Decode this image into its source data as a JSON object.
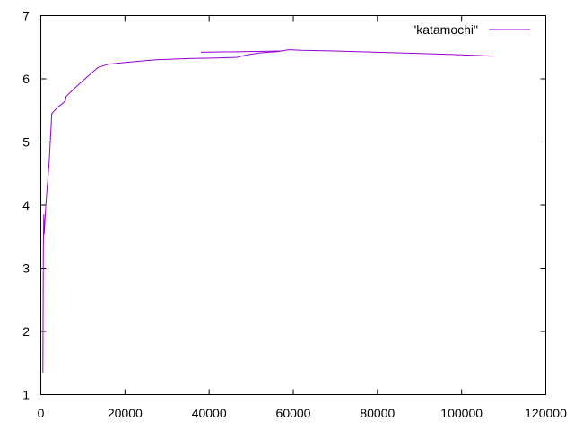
{
  "chart_data": {
    "type": "line",
    "xlim": [
      0,
      120000
    ],
    "ylim": [
      1,
      7
    ],
    "xticks": [
      0,
      20000,
      40000,
      60000,
      80000,
      100000,
      120000
    ],
    "xtick_labels": [
      "0",
      "20000",
      "40000",
      "60000",
      "80000",
      "100000",
      "120000"
    ],
    "yticks": [
      1,
      2,
      3,
      4,
      5,
      6,
      7
    ],
    "ytick_labels": [
      "1",
      "2",
      "3",
      "4",
      "5",
      "6",
      "7"
    ],
    "grid": false,
    "legend": "top-right",
    "series": [
      {
        "name": "\"katamochi\"",
        "color": "#9400d3",
        "points": [
          [
            500,
            1.35
          ],
          [
            600,
            3.3
          ],
          [
            700,
            3.85
          ],
          [
            800,
            3.55
          ],
          [
            1200,
            4.0
          ],
          [
            2000,
            4.7
          ],
          [
            2600,
            5.45
          ],
          [
            3000,
            5.48
          ],
          [
            4000,
            5.55
          ],
          [
            5000,
            5.6
          ],
          [
            5800,
            5.65
          ],
          [
            6000,
            5.72
          ],
          [
            8000,
            5.85
          ],
          [
            10000,
            5.97
          ],
          [
            13600,
            6.18
          ],
          [
            16000,
            6.23
          ],
          [
            20000,
            6.26
          ],
          [
            27000,
            6.3
          ],
          [
            35000,
            6.32
          ],
          [
            42000,
            6.33
          ],
          [
            46700,
            6.34
          ],
          [
            49000,
            6.38
          ],
          [
            52000,
            6.41
          ],
          [
            56000,
            6.43
          ],
          [
            59000,
            6.46
          ],
          [
            62000,
            6.45
          ],
          [
            70000,
            6.44
          ],
          [
            80000,
            6.42
          ],
          [
            90000,
            6.4
          ],
          [
            100000,
            6.38
          ],
          [
            107500,
            6.36
          ]
        ]
      },
      {
        "name": "",
        "color": "#9400d3",
        "points": [
          [
            38000,
            6.42
          ],
          [
            48000,
            6.43
          ],
          [
            57500,
            6.44
          ]
        ]
      }
    ]
  }
}
